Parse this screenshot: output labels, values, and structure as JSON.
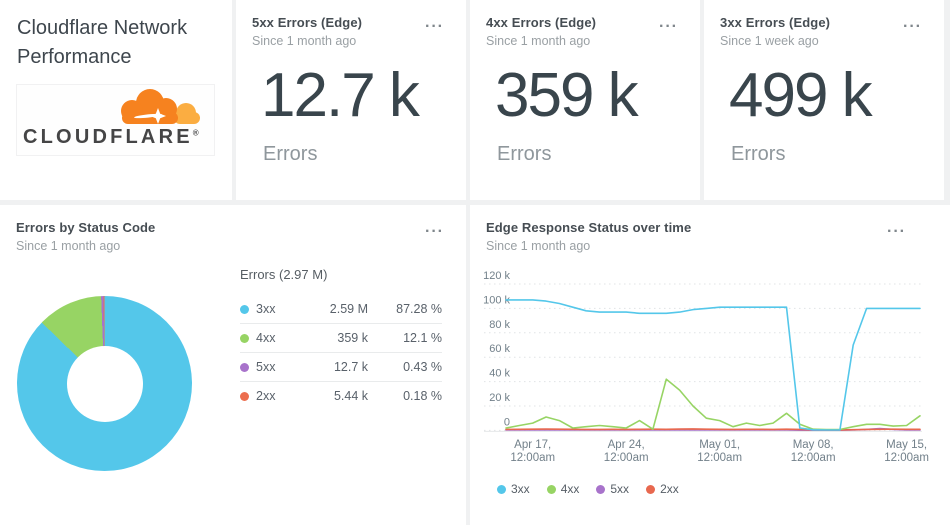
{
  "theme": {
    "background": "#f0f1f2",
    "card_bg": "#ffffff",
    "title_color": "#3e464d",
    "subtitle_color": "#9aa0a4",
    "value_color": "#39454c",
    "axis_color": "#72808a",
    "grid_color": "#e0e3e5"
  },
  "icons": {
    "more_menu": "···"
  },
  "title_card": {
    "line1": "Cloudflare Network",
    "line2": "Performance",
    "logo_text": "CLOUDFLARE",
    "logo_mark": "®",
    "logo_orange": "#f6821f",
    "logo_light_orange": "#fbad41",
    "logo_text_color": "#454546"
  },
  "kpi_cards": [
    {
      "title": "5xx Errors (Edge)",
      "subtitle": "Since 1 month ago",
      "value": "12.7 k",
      "unit": "Errors"
    },
    {
      "title": "4xx Errors (Edge)",
      "subtitle": "Since 1 month ago",
      "value": "359 k",
      "unit": "Errors"
    },
    {
      "title": "3xx Errors (Edge)",
      "subtitle": "Since 1 week ago",
      "value": "499 k",
      "unit": "Errors"
    }
  ],
  "pie_card": {
    "title": "Errors by Status Code",
    "subtitle": "Since 1 month ago",
    "table_title": "Errors (2.97 M)"
  },
  "line_card": {
    "title": "Edge Response Status over time",
    "subtitle": "Since 1 month ago"
  },
  "chart_data": [
    {
      "type": "pie",
      "title": "Errors by Status Code",
      "donut": true,
      "total_label": "Errors (2.97 M)",
      "total_value": 2970000,
      "slices": [
        {
          "label": "3xx",
          "value": 2590000,
          "display": "2.59 M",
          "pct": 87.28,
          "pct_display": "87.28 %",
          "color": "#54c7ea"
        },
        {
          "label": "4xx",
          "value": 359000,
          "display": "359 k",
          "pct": 12.1,
          "pct_display": "12.1 %",
          "color": "#97d464"
        },
        {
          "label": "5xx",
          "value": 12700,
          "display": "12.7 k",
          "pct": 0.43,
          "pct_display": "0.43 %",
          "color": "#a873cb"
        },
        {
          "label": "2xx",
          "value": 5440,
          "display": "5.44 k",
          "pct": 0.18,
          "pct_display": "0.18 %",
          "color": "#ec6e4f"
        }
      ]
    },
    {
      "type": "line",
      "title": "Edge Response Status over time",
      "values_unit": "thousands",
      "ylim_thousands": [
        0,
        120
      ],
      "x_start": "Apr 15, 12:00am",
      "x_step": "1 day",
      "grid": "dashed-horizontal",
      "legend_position": "bottom-left",
      "y_ticks": [
        {
          "value": 120,
          "label": "120 k"
        },
        {
          "value": 100,
          "label": "100 k"
        },
        {
          "value": 80,
          "label": "80 k"
        },
        {
          "value": 60,
          "label": "60 k"
        },
        {
          "value": 40,
          "label": "40 k"
        },
        {
          "value": 20,
          "label": "20 k"
        },
        {
          "value": 0,
          "label": "0"
        }
      ],
      "x_ticks": [
        {
          "index": 2,
          "line1": "Apr 17,",
          "line2": "12:00am"
        },
        {
          "index": 9,
          "line1": "Apr 24,",
          "line2": "12:00am"
        },
        {
          "index": 16,
          "line1": "May 01,",
          "line2": "12:00am"
        },
        {
          "index": 23,
          "line1": "May 08,",
          "line2": "12:00am"
        },
        {
          "index": 30,
          "line1": "May 15,",
          "line2": "12:00am"
        }
      ],
      "legend": [
        "3xx",
        "4xx",
        "5xx",
        "2xx"
      ],
      "series": [
        {
          "name": "5xx",
          "color": "#a873cb",
          "values": [
            0.3,
            0.3,
            0.3,
            0.3,
            0.3,
            0.3,
            0.3,
            0.3,
            0.3,
            0.3,
            0.3,
            0.3,
            0.3,
            0.3,
            0.3,
            0.3,
            0.3,
            0.3,
            0.3,
            0.3,
            0.3,
            0.3,
            0.2,
            0.2,
            0.2,
            0.2,
            0.3,
            0.8,
            1.5,
            0.8,
            0.3,
            0.3
          ]
        },
        {
          "name": "2xx",
          "color": "#e8684f",
          "values": [
            0.8,
            0.9,
            1.0,
            1.1,
            1.0,
            0.9,
            0.8,
            0.8,
            0.9,
            0.8,
            0.9,
            1.0,
            0.9,
            1.1,
            1.2,
            1.0,
            0.9,
            0.8,
            0.9,
            0.9,
            0.8,
            1.0,
            0.8,
            0.5,
            0.4,
            0.4,
            0.6,
            0.8,
            0.9,
            1.0,
            0.9,
            0.9
          ]
        },
        {
          "name": "4xx",
          "color": "#97d464",
          "values": [
            2,
            4,
            6,
            11,
            8,
            2,
            3,
            4,
            3,
            2,
            8,
            1,
            42,
            33,
            20,
            10,
            8,
            3,
            6,
            4,
            6,
            14,
            5,
            1,
            0.7,
            0.7,
            3,
            5,
            5,
            3.5,
            4,
            12
          ]
        },
        {
          "name": "3xx",
          "color": "#54c7ea",
          "values": [
            107,
            107,
            107,
            106,
            104,
            101,
            98,
            97,
            97,
            97,
            96,
            96,
            96,
            97,
            99,
            100,
            101,
            101,
            101,
            101,
            101,
            101,
            2,
            0.5,
            0.3,
            0.3,
            70,
            100,
            100,
            100,
            100,
            100
          ]
        }
      ]
    }
  ]
}
